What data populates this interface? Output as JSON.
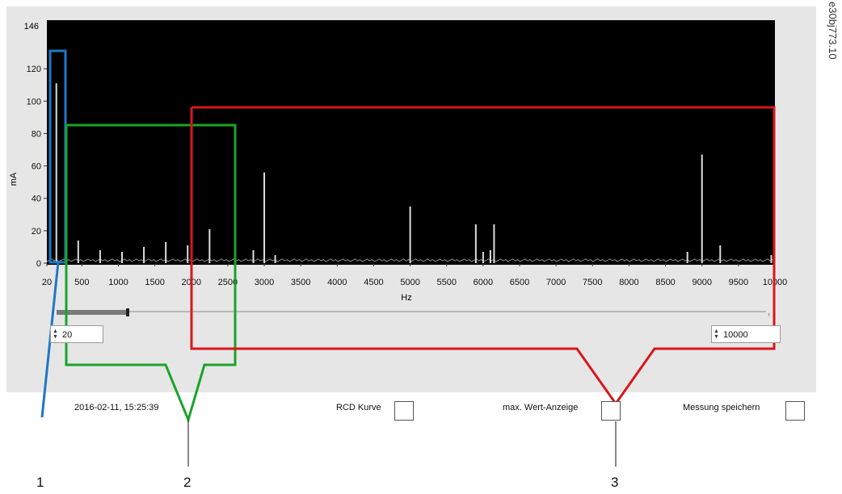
{
  "figure_id": "e30bj773.10",
  "chart_data": {
    "type": "bar",
    "ylabel": "mA",
    "xlabel": "Hz",
    "xlim": [
      20,
      10000
    ],
    "ylim": [
      0,
      146
    ],
    "y_top_label": "146",
    "y_ticks": [
      0,
      20,
      40,
      60,
      80,
      100,
      120
    ],
    "x_ticks": [
      "20",
      "500",
      "1000",
      "1500",
      "2000",
      "2500",
      "3000",
      "3500",
      "4000",
      "4500",
      "5000",
      "5500",
      "6000",
      "6500",
      "7000",
      "7500",
      "8000",
      "8500",
      "9000",
      "9500",
      "10000"
    ],
    "background": "#000000",
    "line_color": "#dcdcdc",
    "x": [
      150,
      450,
      750,
      1050,
      1350,
      1650,
      1950,
      2250,
      2850,
      3000,
      3150,
      5000,
      5900,
      6000,
      6100,
      6150,
      8800,
      9000,
      9250,
      9950
    ],
    "values": [
      111,
      14,
      8,
      7,
      10,
      13,
      11,
      21,
      8,
      56,
      5,
      35,
      24,
      7,
      8,
      24,
      7,
      67,
      11,
      5
    ]
  },
  "controls": {
    "x_min_value": "20",
    "x_max_value": "10000",
    "timestamp": "2016-02-11,  15:25:39",
    "rcd_label": "RCD Kurve",
    "max_label": "max. Wert-Anzeige",
    "save_label": "Messung speichern"
  },
  "callouts": {
    "colors": {
      "blue": "#1f77c4",
      "green": "#1aa32a",
      "red": "#d8161b"
    },
    "labels": [
      "1",
      "2",
      "3"
    ]
  }
}
